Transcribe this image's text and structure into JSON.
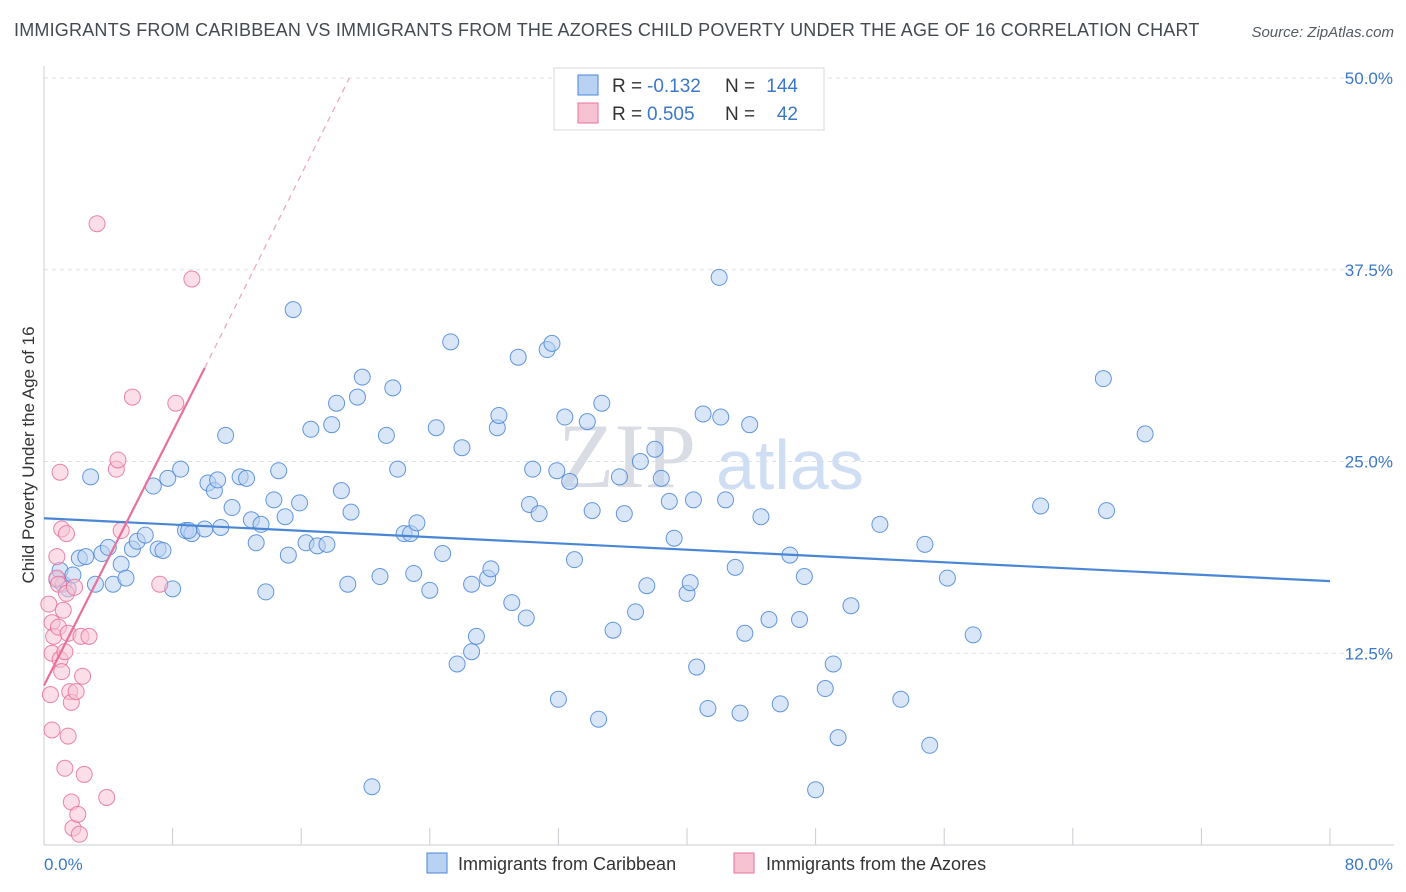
{
  "title": "IMMIGRANTS FROM CARIBBEAN VS IMMIGRANTS FROM THE AZORES CHILD POVERTY UNDER THE AGE OF 16 CORRELATION CHART",
  "source": "Source: ZipAtlas.com",
  "watermark": {
    "zip": "ZIP",
    "atlas": "atlas"
  },
  "colors": {
    "blue": "#4a86d6",
    "blue_fill": "#b9d2f3",
    "pink": "#e8709a",
    "pink_fill": "#f7c3d3",
    "grid": "#dde1e6",
    "axis_text": "#3b78c8"
  },
  "legend": {
    "r_label": "R =",
    "n_label": "N =",
    "rows": [
      {
        "r": "-0.132",
        "n": "144"
      },
      {
        "r": "0.505",
        "n": "42"
      }
    ]
  },
  "chart_data": {
    "type": "scatter",
    "title": "IMMIGRANTS FROM CARIBBEAN VS IMMIGRANTS FROM THE AZORES CHILD POVERTY UNDER THE AGE OF 16 CORRELATION CHART",
    "xlabel": "",
    "ylabel": "Child Poverty Under the Age of 16",
    "xlim": [
      0,
      80
    ],
    "ylim": [
      0,
      50
    ],
    "x_ticks": [
      0,
      80
    ],
    "x_tick_labels": [
      "0.0%",
      "80.0%"
    ],
    "y_ticks": [
      12.5,
      25.0,
      37.5,
      50.0
    ],
    "y_tick_labels": [
      "12.5%",
      "25.0%",
      "37.5%",
      "50.0%"
    ],
    "grid": "horizontal dashed",
    "legend_position": "top-center",
    "series": [
      {
        "name": "Immigrants from Caribbean",
        "color": "#4a86d6",
        "trendline": {
          "x": [
            0,
            80
          ],
          "y": [
            21.3,
            17.2
          ]
        },
        "points": [
          [
            0.8,
            17.3
          ],
          [
            1.0,
            17.9
          ],
          [
            1.2,
            17.0
          ],
          [
            1.5,
            16.7
          ],
          [
            1.8,
            17.6
          ],
          [
            2.2,
            18.7
          ],
          [
            2.6,
            18.8
          ],
          [
            2.9,
            24.0
          ],
          [
            3.2,
            17.0
          ],
          [
            3.6,
            19.0
          ],
          [
            4.0,
            19.4
          ],
          [
            4.3,
            17.0
          ],
          [
            4.8,
            18.3
          ],
          [
            5.1,
            17.4
          ],
          [
            5.5,
            19.3
          ],
          [
            5.8,
            19.8
          ],
          [
            6.3,
            20.2
          ],
          [
            6.8,
            23.4
          ],
          [
            7.1,
            19.3
          ],
          [
            7.4,
            19.2
          ],
          [
            7.7,
            23.9
          ],
          [
            8.0,
            16.7
          ],
          [
            8.5,
            24.5
          ],
          [
            8.8,
            20.5
          ],
          [
            9.2,
            20.3
          ],
          [
            9.0,
            20.5
          ],
          [
            10.0,
            20.6
          ],
          [
            10.2,
            23.6
          ],
          [
            10.6,
            23.1
          ],
          [
            10.8,
            23.8
          ],
          [
            11.0,
            20.7
          ],
          [
            11.3,
            26.7
          ],
          [
            11.7,
            22.0
          ],
          [
            12.2,
            24.0
          ],
          [
            12.6,
            23.9
          ],
          [
            12.9,
            21.2
          ],
          [
            13.2,
            19.7
          ],
          [
            13.5,
            20.9
          ],
          [
            13.8,
            16.5
          ],
          [
            14.3,
            22.5
          ],
          [
            14.6,
            24.4
          ],
          [
            15.0,
            21.4
          ],
          [
            15.2,
            18.9
          ],
          [
            15.5,
            34.9
          ],
          [
            15.9,
            22.3
          ],
          [
            16.3,
            19.7
          ],
          [
            16.6,
            27.1
          ],
          [
            17.0,
            19.5
          ],
          [
            17.6,
            19.6
          ],
          [
            17.9,
            27.4
          ],
          [
            18.2,
            28.8
          ],
          [
            18.5,
            23.1
          ],
          [
            18.9,
            17.0
          ],
          [
            19.1,
            21.7
          ],
          [
            19.5,
            29.2
          ],
          [
            19.8,
            30.5
          ],
          [
            20.4,
            3.8
          ],
          [
            20.9,
            17.5
          ],
          [
            21.3,
            26.7
          ],
          [
            21.7,
            29.8
          ],
          [
            22.0,
            24.5
          ],
          [
            22.4,
            20.3
          ],
          [
            22.8,
            20.3
          ],
          [
            23.0,
            17.7
          ],
          [
            23.2,
            21.0
          ],
          [
            24.0,
            16.6
          ],
          [
            24.4,
            27.2
          ],
          [
            24.8,
            19.0
          ],
          [
            25.3,
            32.8
          ],
          [
            25.7,
            11.8
          ],
          [
            26.0,
            25.9
          ],
          [
            26.6,
            12.6
          ],
          [
            26.9,
            13.6
          ],
          [
            26.6,
            17.0
          ],
          [
            27.6,
            17.4
          ],
          [
            27.8,
            18.0
          ],
          [
            28.2,
            27.2
          ],
          [
            28.3,
            28.0
          ],
          [
            29.1,
            15.8
          ],
          [
            29.5,
            31.8
          ],
          [
            30.0,
            14.8
          ],
          [
            30.2,
            22.2
          ],
          [
            30.4,
            24.5
          ],
          [
            30.8,
            21.6
          ],
          [
            31.3,
            32.3
          ],
          [
            31.6,
            32.7
          ],
          [
            31.9,
            24.4
          ],
          [
            32.0,
            9.5
          ],
          [
            32.4,
            27.9
          ],
          [
            32.7,
            23.7
          ],
          [
            33.0,
            18.6
          ],
          [
            33.8,
            27.6
          ],
          [
            34.1,
            21.8
          ],
          [
            34.5,
            8.2
          ],
          [
            34.7,
            28.8
          ],
          [
            35.4,
            14.0
          ],
          [
            35.8,
            24.0
          ],
          [
            36.1,
            21.6
          ],
          [
            36.8,
            15.2
          ],
          [
            37.1,
            25.0
          ],
          [
            37.5,
            16.9
          ],
          [
            38.0,
            25.8
          ],
          [
            38.4,
            23.9
          ],
          [
            38.9,
            22.4
          ],
          [
            39.2,
            20.0
          ],
          [
            40.0,
            16.4
          ],
          [
            40.2,
            17.1
          ],
          [
            40.4,
            22.5
          ],
          [
            40.6,
            11.6
          ],
          [
            41.0,
            28.1
          ],
          [
            41.3,
            8.9
          ],
          [
            42.1,
            27.9
          ],
          [
            42.4,
            22.5
          ],
          [
            43.0,
            18.1
          ],
          [
            43.3,
            8.6
          ],
          [
            43.6,
            13.8
          ],
          [
            43.9,
            27.4
          ],
          [
            44.6,
            21.4
          ],
          [
            45.1,
            14.7
          ],
          [
            45.8,
            9.2
          ],
          [
            46.4,
            18.9
          ],
          [
            47.0,
            14.7
          ],
          [
            47.3,
            17.5
          ],
          [
            48.6,
            10.2
          ],
          [
            49.1,
            11.8
          ],
          [
            49.4,
            7.0
          ],
          [
            50.2,
            15.6
          ],
          [
            52.0,
            20.9
          ],
          [
            53.3,
            9.5
          ],
          [
            54.8,
            19.6
          ],
          [
            55.1,
            6.5
          ],
          [
            56.2,
            17.4
          ],
          [
            57.8,
            13.7
          ],
          [
            62.0,
            22.1
          ],
          [
            65.9,
            30.4
          ],
          [
            66.1,
            21.8
          ],
          [
            68.5,
            26.8
          ],
          [
            42.0,
            37.0
          ],
          [
            48.0,
            3.6
          ]
        ]
      },
      {
        "name": "Immigrants from the Azores",
        "color": "#e8709a",
        "trendline": {
          "x": [
            0,
            10.0
          ],
          "y": [
            10.4,
            31.1
          ]
        },
        "trendline_extension": {
          "x": [
            10.0,
            19.0
          ],
          "y": [
            31.1,
            50.0
          ]
        },
        "points": [
          [
            0.3,
            15.7
          ],
          [
            0.5,
            14.5
          ],
          [
            0.6,
            13.6
          ],
          [
            0.5,
            12.5
          ],
          [
            0.4,
            9.8
          ],
          [
            0.5,
            7.5
          ],
          [
            0.8,
            18.8
          ],
          [
            0.8,
            17.4
          ],
          [
            0.9,
            17.0
          ],
          [
            0.9,
            14.2
          ],
          [
            1.0,
            12.1
          ],
          [
            1.1,
            20.6
          ],
          [
            1.0,
            24.3
          ],
          [
            1.1,
            11.3
          ],
          [
            1.2,
            15.3
          ],
          [
            1.3,
            12.6
          ],
          [
            1.3,
            5.0
          ],
          [
            1.4,
            20.3
          ],
          [
            1.4,
            16.4
          ],
          [
            1.5,
            13.8
          ],
          [
            1.5,
            7.1
          ],
          [
            1.6,
            10.0
          ],
          [
            1.7,
            9.3
          ],
          [
            1.7,
            2.8
          ],
          [
            1.8,
            1.1
          ],
          [
            1.9,
            16.8
          ],
          [
            2.0,
            10.0
          ],
          [
            2.1,
            2.0
          ],
          [
            2.2,
            0.7
          ],
          [
            2.3,
            13.6
          ],
          [
            2.4,
            11.0
          ],
          [
            2.5,
            4.6
          ],
          [
            2.8,
            13.6
          ],
          [
            3.3,
            40.5
          ],
          [
            3.9,
            3.1
          ],
          [
            4.5,
            24.5
          ],
          [
            4.6,
            25.1
          ],
          [
            4.8,
            20.5
          ],
          [
            5.5,
            29.2
          ],
          [
            7.2,
            17.0
          ],
          [
            8.2,
            28.8
          ],
          [
            9.2,
            36.9
          ]
        ]
      }
    ]
  },
  "bottom_legend": [
    {
      "label": "Immigrants from Caribbean"
    },
    {
      "label": "Immigrants from the Azores"
    }
  ]
}
